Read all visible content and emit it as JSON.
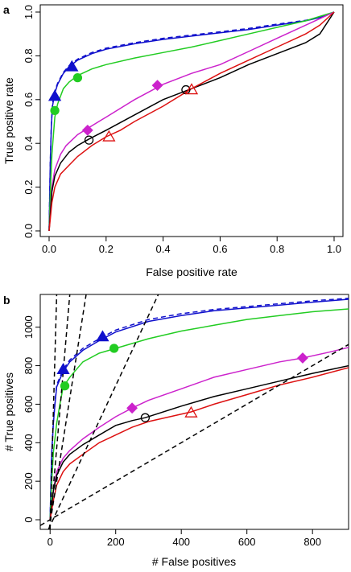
{
  "chart_data": [
    {
      "panel_label": "a",
      "type": "line",
      "xlabel": "False positive rate",
      "ylabel": "True positive rate",
      "xlim": [
        0,
        1
      ],
      "ylim": [
        0,
        1
      ],
      "xticks": [
        "0.0",
        "0.2",
        "0.4",
        "0.6",
        "0.8",
        "1.0"
      ],
      "yticks": [
        "0.0",
        "0.2",
        "0.4",
        "0.6",
        "0.8",
        "1.0"
      ],
      "grid": false,
      "series": [
        {
          "color": "#1010cc",
          "dash": "solid",
          "x": [
            0,
            0.004,
            0.008,
            0.012,
            0.02,
            0.03,
            0.05,
            0.07,
            0.1,
            0.15,
            0.2,
            0.3,
            0.4,
            0.5,
            0.6,
            0.7,
            0.8,
            0.9,
            0.95,
            1.0
          ],
          "y": [
            0,
            0.3,
            0.48,
            0.57,
            0.63,
            0.67,
            0.72,
            0.75,
            0.78,
            0.81,
            0.83,
            0.855,
            0.875,
            0.89,
            0.905,
            0.92,
            0.94,
            0.96,
            0.975,
            1.0
          ]
        },
        {
          "color": "#1010cc",
          "dash": "dashed",
          "x": [
            0,
            0.004,
            0.008,
            0.012,
            0.02,
            0.03,
            0.05,
            0.07,
            0.1,
            0.15,
            0.2,
            0.3,
            0.4,
            0.5,
            0.6,
            0.7,
            0.8,
            0.9,
            0.95,
            1.0
          ],
          "y": [
            0,
            0.31,
            0.49,
            0.58,
            0.64,
            0.675,
            0.725,
            0.755,
            0.785,
            0.815,
            0.835,
            0.86,
            0.88,
            0.895,
            0.91,
            0.925,
            0.945,
            0.962,
            0.977,
            1.0
          ]
        },
        {
          "color": "#22cc22",
          "dash": "solid",
          "x": [
            0,
            0.005,
            0.01,
            0.02,
            0.03,
            0.05,
            0.07,
            0.1,
            0.15,
            0.2,
            0.3,
            0.4,
            0.5,
            0.6,
            0.7,
            0.8,
            0.9,
            0.95,
            1.0
          ],
          "y": [
            0,
            0.2,
            0.35,
            0.52,
            0.58,
            0.65,
            0.68,
            0.71,
            0.74,
            0.76,
            0.79,
            0.815,
            0.84,
            0.87,
            0.9,
            0.93,
            0.96,
            0.98,
            1.0
          ]
        },
        {
          "color": "#cc22cc",
          "dash": "solid",
          "x": [
            0,
            0.01,
            0.02,
            0.04,
            0.06,
            0.1,
            0.15,
            0.2,
            0.3,
            0.4,
            0.5,
            0.6,
            0.7,
            0.8,
            0.9,
            0.95,
            1.0
          ],
          "y": [
            0,
            0.2,
            0.28,
            0.35,
            0.39,
            0.44,
            0.48,
            0.52,
            0.6,
            0.67,
            0.72,
            0.76,
            0.82,
            0.88,
            0.94,
            0.97,
            1.0
          ]
        },
        {
          "color": "#000000",
          "dash": "solid",
          "x": [
            0,
            0.01,
            0.02,
            0.04,
            0.07,
            0.1,
            0.14,
            0.2,
            0.3,
            0.4,
            0.5,
            0.6,
            0.7,
            0.8,
            0.9,
            0.95,
            1.0
          ],
          "y": [
            0,
            0.18,
            0.25,
            0.31,
            0.36,
            0.39,
            0.42,
            0.46,
            0.53,
            0.6,
            0.65,
            0.7,
            0.76,
            0.81,
            0.86,
            0.9,
            1.0
          ]
        },
        {
          "color": "#dd1111",
          "dash": "solid",
          "x": [
            0,
            0.01,
            0.02,
            0.04,
            0.07,
            0.1,
            0.15,
            0.2,
            0.25,
            0.3,
            0.4,
            0.5,
            0.6,
            0.7,
            0.8,
            0.9,
            0.95,
            1.0
          ],
          "y": [
            0,
            0.13,
            0.2,
            0.26,
            0.3,
            0.34,
            0.39,
            0.43,
            0.46,
            0.5,
            0.57,
            0.65,
            0.72,
            0.78,
            0.84,
            0.9,
            0.94,
            1.0
          ]
        }
      ],
      "markers": [
        {
          "shape": "triangle",
          "color": "#1010cc",
          "filled": true,
          "x": 0.02,
          "y": 0.615
        },
        {
          "shape": "triangle",
          "color": "#1010cc",
          "filled": true,
          "x": 0.08,
          "y": 0.75
        },
        {
          "shape": "circle",
          "color": "#22cc22",
          "filled": true,
          "x": 0.02,
          "y": 0.55
        },
        {
          "shape": "circle",
          "color": "#22cc22",
          "filled": true,
          "x": 0.1,
          "y": 0.7
        },
        {
          "shape": "diamond",
          "color": "#cc22cc",
          "filled": true,
          "x": 0.135,
          "y": 0.46
        },
        {
          "shape": "diamond",
          "color": "#cc22cc",
          "filled": true,
          "x": 0.38,
          "y": 0.665
        },
        {
          "shape": "circle",
          "color": "#000000",
          "filled": false,
          "x": 0.14,
          "y": 0.415
        },
        {
          "shape": "circle",
          "color": "#000000",
          "filled": false,
          "x": 0.48,
          "y": 0.645
        },
        {
          "shape": "triangle",
          "color": "#dd1111",
          "filled": false,
          "x": 0.21,
          "y": 0.43
        },
        {
          "shape": "triangle",
          "color": "#dd1111",
          "filled": false,
          "x": 0.5,
          "y": 0.645
        }
      ]
    },
    {
      "panel_label": "b",
      "type": "line",
      "xlabel": "# False positives",
      "ylabel": "# True positives",
      "xlim": [
        -30,
        910
      ],
      "ylim": [
        -50,
        1170
      ],
      "xticks": [
        "0",
        "200",
        "400",
        "600",
        "800"
      ],
      "yticks": [
        "0",
        "200",
        "400",
        "600",
        "800",
        "1000"
      ],
      "grid": false,
      "series": [
        {
          "color": "#1010cc",
          "dash": "solid",
          "x": [
            0,
            5,
            10,
            15,
            20,
            30,
            40,
            60,
            100,
            150,
            200,
            300,
            400,
            500,
            600,
            700,
            800,
            910
          ],
          "y": [
            0,
            350,
            500,
            600,
            690,
            730,
            770,
            820,
            880,
            930,
            975,
            1030,
            1060,
            1085,
            1100,
            1115,
            1130,
            1145
          ]
        },
        {
          "color": "#1010cc",
          "dash": "dashed",
          "x": [
            0,
            5,
            10,
            15,
            20,
            30,
            40,
            60,
            100,
            150,
            200,
            300,
            400,
            500,
            600,
            700,
            800,
            910
          ],
          "y": [
            0,
            360,
            510,
            610,
            700,
            740,
            780,
            830,
            890,
            940,
            985,
            1040,
            1070,
            1092,
            1107,
            1122,
            1137,
            1150
          ]
        },
        {
          "color": "#22cc22",
          "dash": "solid",
          "x": [
            0,
            5,
            10,
            20,
            30,
            40,
            60,
            80,
            100,
            150,
            200,
            300,
            400,
            500,
            600,
            700,
            800,
            910
          ],
          "y": [
            0,
            200,
            350,
            500,
            600,
            690,
            740,
            780,
            820,
            865,
            890,
            940,
            980,
            1010,
            1040,
            1060,
            1080,
            1095
          ]
        },
        {
          "color": "#cc22cc",
          "dash": "solid",
          "x": [
            0,
            10,
            20,
            40,
            60,
            100,
            150,
            200,
            250,
            300,
            400,
            500,
            600,
            700,
            770,
            850,
            910
          ],
          "y": [
            0,
            150,
            250,
            320,
            360,
            420,
            480,
            535,
            580,
            620,
            680,
            740,
            780,
            820,
            840,
            870,
            895
          ]
        },
        {
          "color": "#000000",
          "dash": "solid",
          "x": [
            0,
            10,
            20,
            40,
            60,
            100,
            150,
            200,
            250,
            290,
            400,
            500,
            600,
            700,
            800,
            910
          ],
          "y": [
            0,
            150,
            230,
            300,
            340,
            390,
            440,
            490,
            515,
            530,
            590,
            640,
            680,
            720,
            760,
            800
          ]
        },
        {
          "color": "#dd1111",
          "dash": "solid",
          "x": [
            0,
            10,
            20,
            40,
            60,
            100,
            150,
            200,
            250,
            300,
            430,
            500,
            600,
            700,
            800,
            910
          ],
          "y": [
            0,
            100,
            180,
            250,
            290,
            340,
            400,
            440,
            480,
            510,
            560,
            600,
            650,
            700,
            740,
            790
          ]
        },
        {
          "color": "#000000",
          "dash": "dashed",
          "x": [
            -30,
            910
          ],
          "y": [
            -30,
            910
          ]
        },
        {
          "color": "#000000",
          "dash": "dashed",
          "x": [
            -5,
            330
          ],
          "y": [
            -50,
            1170
          ]
        },
        {
          "color": "#000000",
          "dash": "dashed",
          "x": [
            -3,
            110
          ],
          "y": [
            -50,
            1170
          ]
        },
        {
          "color": "#000000",
          "dash": "dashed",
          "x": [
            -1,
            60
          ],
          "y": [
            -50,
            1170
          ]
        },
        {
          "color": "#000000",
          "dash": "dashed",
          "x": [
            0,
            20
          ],
          "y": [
            -50,
            1170
          ]
        }
      ],
      "markers": [
        {
          "shape": "triangle",
          "color": "#1010cc",
          "filled": true,
          "x": 40,
          "y": 780
        },
        {
          "shape": "triangle",
          "color": "#1010cc",
          "filled": true,
          "x": 160,
          "y": 950
        },
        {
          "shape": "circle",
          "color": "#22cc22",
          "filled": true,
          "x": 45,
          "y": 695
        },
        {
          "shape": "circle",
          "color": "#22cc22",
          "filled": true,
          "x": 195,
          "y": 890
        },
        {
          "shape": "diamond",
          "color": "#cc22cc",
          "filled": true,
          "x": 250,
          "y": 580
        },
        {
          "shape": "diamond",
          "color": "#cc22cc",
          "filled": true,
          "x": 770,
          "y": 840
        },
        {
          "shape": "circle",
          "color": "#000000",
          "filled": false,
          "x": 290,
          "y": 530
        },
        {
          "shape": "triangle",
          "color": "#dd1111",
          "filled": false,
          "x": 430,
          "y": 555
        }
      ]
    }
  ]
}
